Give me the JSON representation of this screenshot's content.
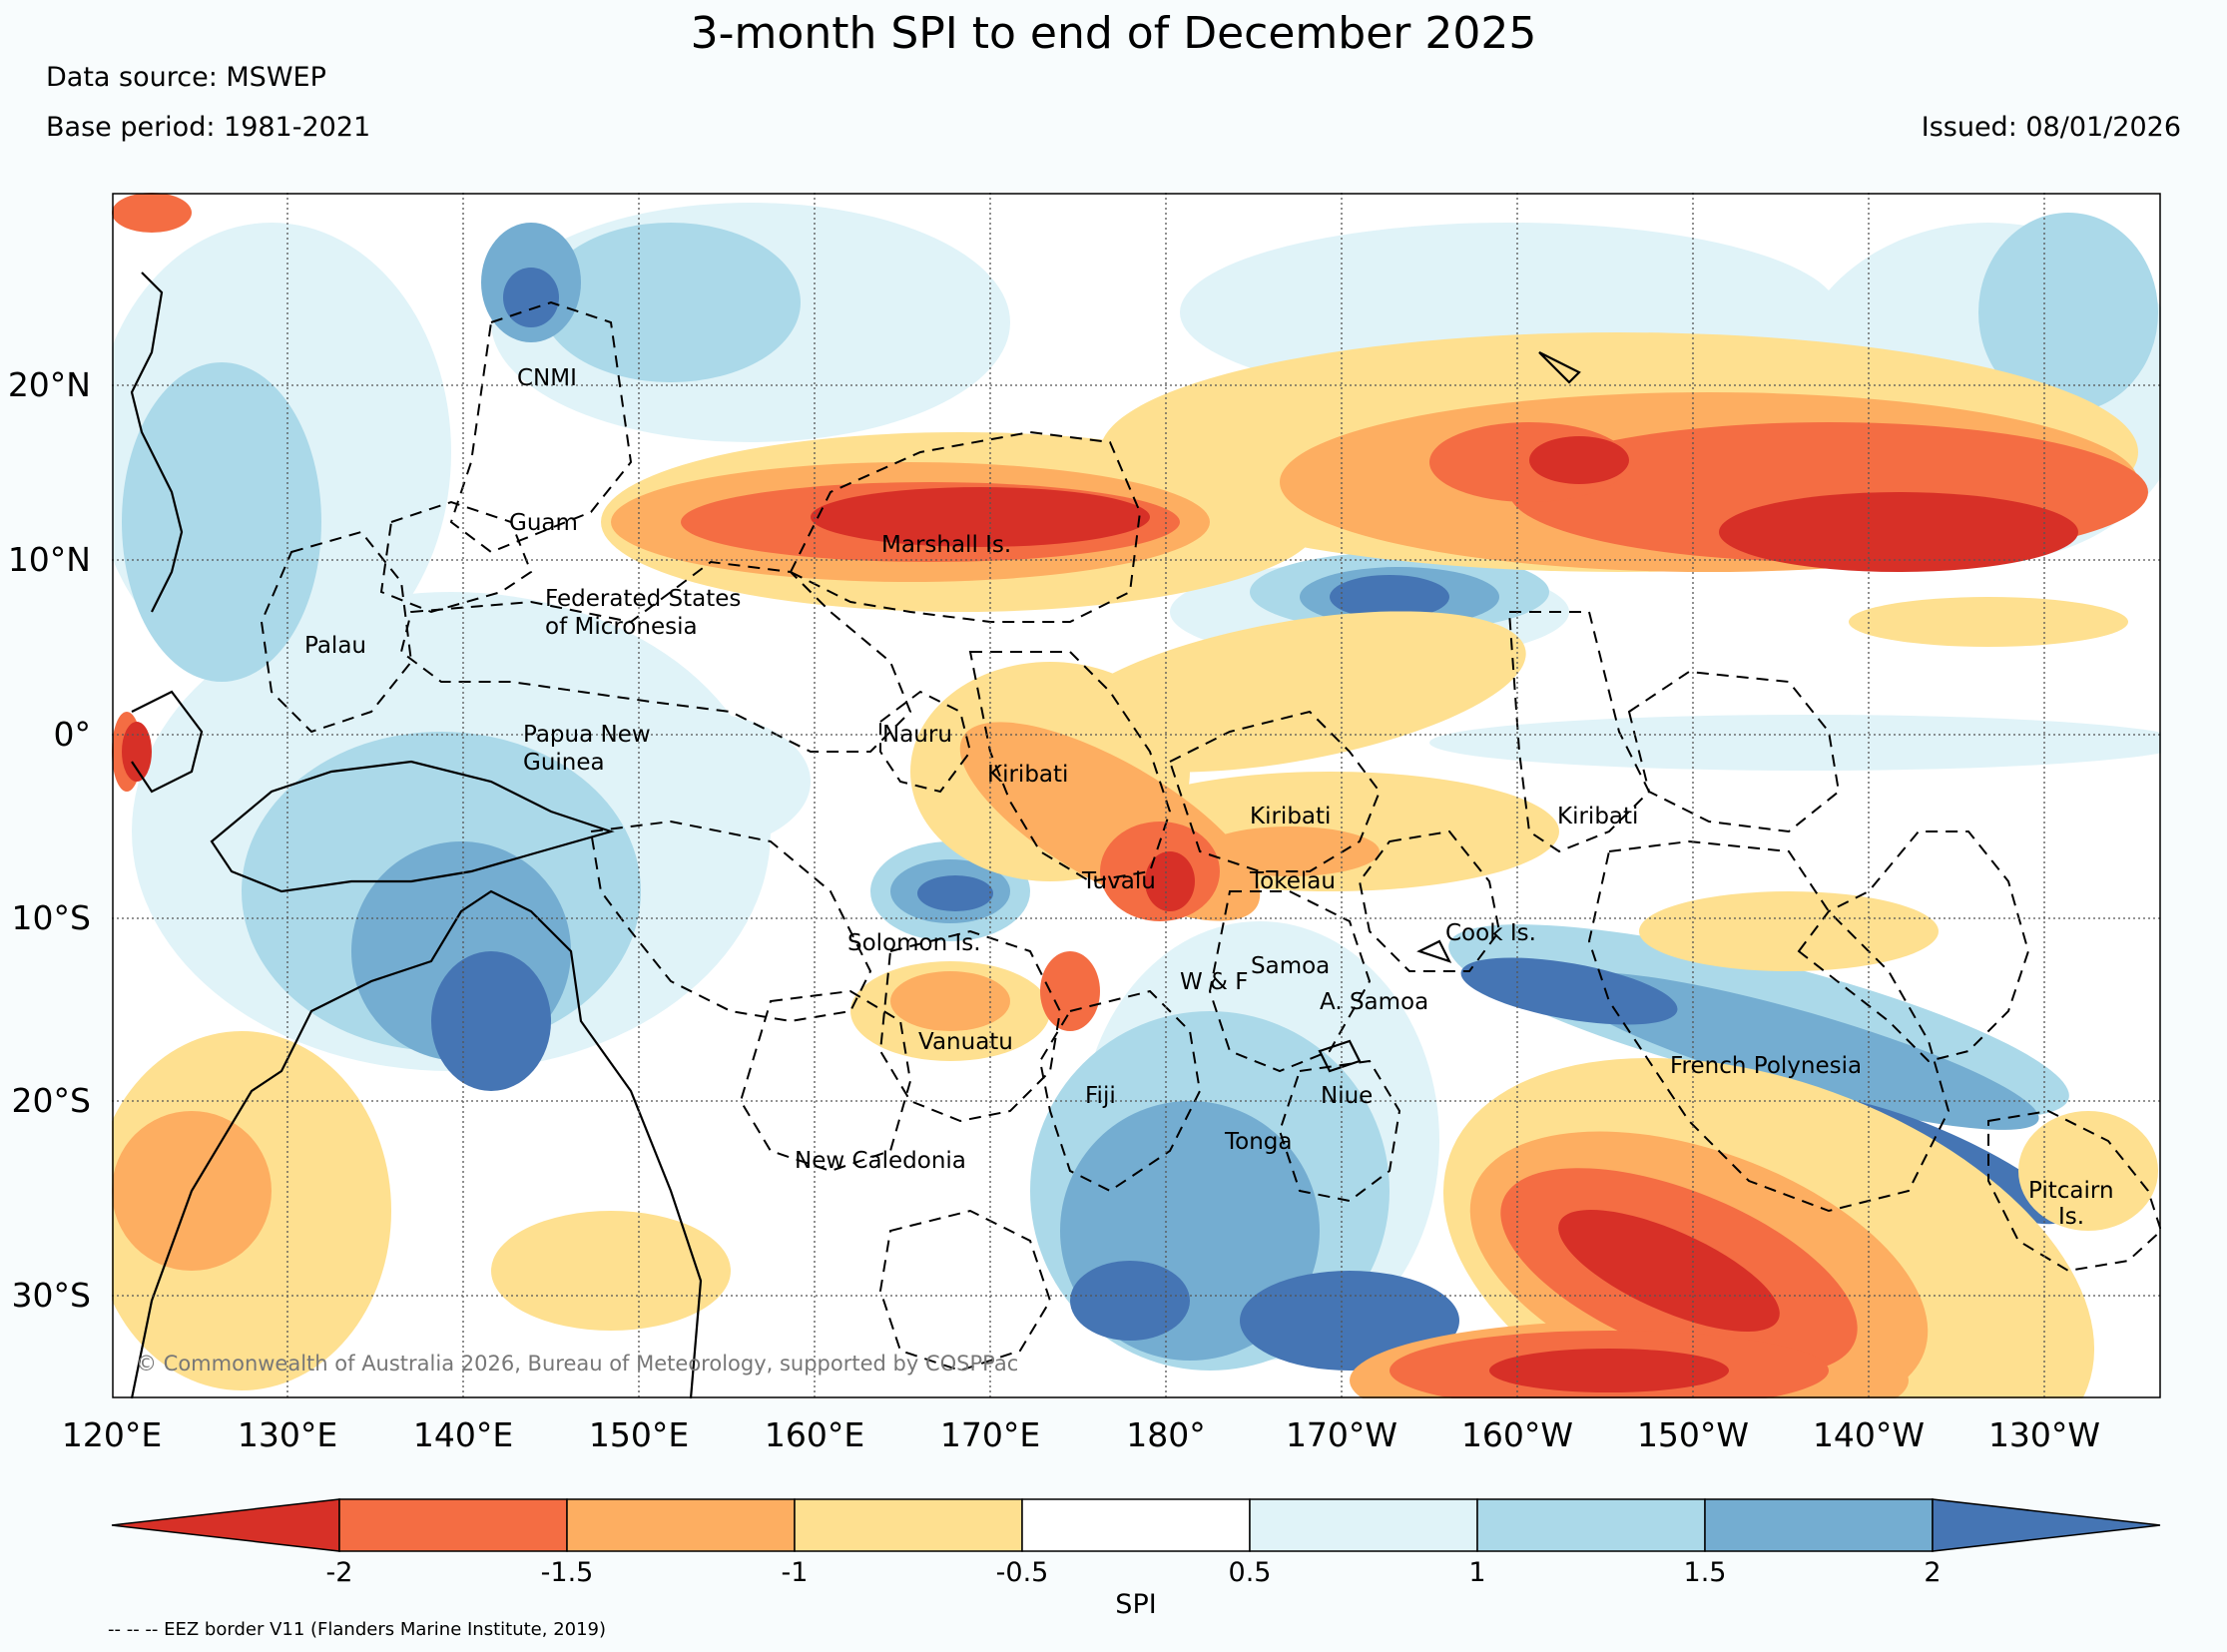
{
  "title": "3-month SPI to end of December 2025",
  "data_source": "Data source: MSWEP",
  "base_period": "Base period: 1981-2021",
  "issued": "Issued: 08/01/2026",
  "copyright": "© Commonwealth of Australia 2026, Bureau of Meteorology, supported by COSPPac",
  "lat_ticks": [
    "20°N",
    "10°N",
    "0°",
    "10°S",
    "20°S",
    "30°S"
  ],
  "lon_ticks": [
    "120°E",
    "130°E",
    "140°E",
    "150°E",
    "160°E",
    "170°E",
    "180°",
    "170°W",
    "160°W",
    "150°W",
    "140°W",
    "130°W"
  ],
  "colorbar": {
    "title": "SPI",
    "ticks": [
      "-2",
      "-1.5",
      "-1",
      "-0.5",
      "0.5",
      "1",
      "1.5",
      "2"
    ],
    "colors": [
      "#d73027",
      "#f46d43",
      "#fdae61",
      "#fee090",
      "#ffffff",
      "#e0f3f8",
      "#abd9e9",
      "#74add1",
      "#4575b4"
    ]
  },
  "eez_note": "-- -- -- EEZ border V11 (Flanders Marine Institute, 2019)",
  "places": {
    "cnmi": "CNMI",
    "guam": "Guam",
    "marshall": "Marshall Is.",
    "fsm1": "Federated States",
    "fsm2": "of Micronesia",
    "palau": "Palau",
    "png1": "Papua New",
    "png2": "Guinea",
    "nauru": "Nauru",
    "kiribati_w": "Kiribati",
    "kiribati_c": "Kiribati",
    "kiribati_e": "Kiribati",
    "tuvalu": "Tuvalu",
    "tokelau": "Tokelau",
    "solomon": "Solomon Is.",
    "cook": "Cook Is.",
    "samoa": "Samoa",
    "wf": "W & F",
    "asamoa": "A. Samoa",
    "vanuatu": "Vanuatu",
    "fiji": "Fiji",
    "niue": "Niue",
    "tonga": "Tonga",
    "frpoly": "French Polynesia",
    "newcal": "New Caledonia",
    "pitcairn1": "Pitcairn",
    "pitcairn2": "Is."
  }
}
